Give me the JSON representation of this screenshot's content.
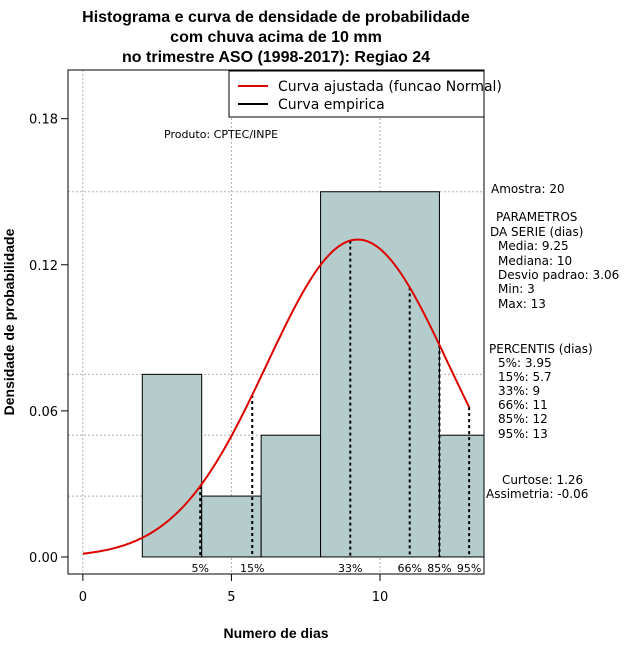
{
  "title_lines": [
    "Histograma e curva de densidade de probabilidade",
    "com chuva acima de 10 mm",
    "no trimestre ASO (1998-2017): Regiao 24"
  ],
  "product_label": "Produto: CPTEC/INPE",
  "legend": {
    "fitted_label": "Curva ajustada (funcao Normal)",
    "empirical_label": "Curva empirica",
    "fitted_color": "#dd0000",
    "empirical_color": "#000000",
    "position": "top-right"
  },
  "stats": {
    "amostra": "Amostra: 20",
    "param_title1": "PARAMETROS",
    "param_title2": "DA SERIE (dias)",
    "media": "Media: 9.25",
    "mediana": "Mediana: 10",
    "desvio": "Desvio padrao: 3.06",
    "min": "Min: 3",
    "max": "Max: 13",
    "perc_title": "PERCENTIS (dias)",
    "p5": "5%: 3.95",
    "p15": "15%: 5.7",
    "p33": "33%: 9",
    "p66": "66%: 11",
    "p85": "85%: 12",
    "p95": "95%: 13",
    "curtose": "Curtose: 1.26",
    "assimetria": "Assimetria: -0.06"
  },
  "chart_data": {
    "type": "bar",
    "xlabel": "Numero de dias",
    "ylabel": "Densidade de probabilidade",
    "xlim": [
      -0.5,
      13.5
    ],
    "ylim": [
      -0.007,
      0.2
    ],
    "x_ticks": [
      0,
      5,
      10
    ],
    "y_ticks": [
      0.0,
      0.06,
      0.12,
      0.18
    ],
    "y_tick_labels": [
      "0.00",
      "0.06",
      "0.12",
      "0.18"
    ],
    "grid": true,
    "bar_color": "#b5cccc",
    "bins": [
      {
        "x0": 2,
        "x1": 4,
        "density": 0.075
      },
      {
        "x0": 4,
        "x1": 6,
        "density": 0.025
      },
      {
        "x0": 6,
        "x1": 8,
        "density": 0.05
      },
      {
        "x0": 8,
        "x1": 12,
        "density": 0.15
      },
      {
        "x0": 12,
        "x1": 14,
        "density": 0.05
      }
    ],
    "normal_fit": {
      "mean": 9.25,
      "sd": 3.06,
      "x_from": 0,
      "x_to": 13
    },
    "percentiles": [
      {
        "label": "5%",
        "value": 3.95
      },
      {
        "label": "15%",
        "value": 5.7
      },
      {
        "label": "33%",
        "value": 9
      },
      {
        "label": "66%",
        "value": 11
      },
      {
        "label": "85%",
        "value": 12
      },
      {
        "label": "95%",
        "value": 13
      }
    ]
  }
}
